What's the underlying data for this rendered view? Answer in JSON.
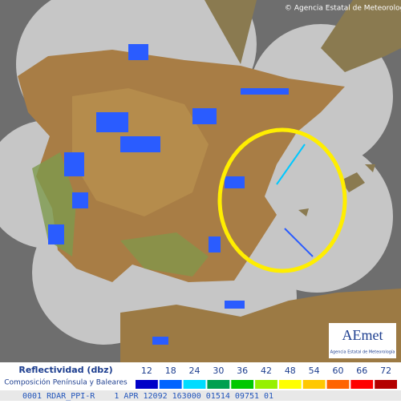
{
  "header": {
    "credit": "© Agencia Estatal de Meteorología"
  },
  "logo": {
    "name": "AEmet",
    "subtitle": "Agencia Estatal de Meteorología"
  },
  "legend": {
    "title": "Reflectividad (dbz)",
    "subtitle": "Composición Península y Baleares",
    "items": [
      {
        "label": 12,
        "color": "#0000c8"
      },
      {
        "label": 18,
        "color": "#0064ff"
      },
      {
        "label": 24,
        "color": "#00dcff"
      },
      {
        "label": 30,
        "color": "#00a050"
      },
      {
        "label": 36,
        "color": "#00c800"
      },
      {
        "label": 42,
        "color": "#96f000"
      },
      {
        "label": 48,
        "color": "#ffff00"
      },
      {
        "label": 54,
        "color": "#ffc800"
      },
      {
        "label": 60,
        "color": "#ff6400"
      },
      {
        "label": 66,
        "color": "#ff0000"
      },
      {
        "label": 72,
        "color": "#b40000"
      }
    ]
  },
  "footer": {
    "text": "0001 RDAR_PPI-R    1 APR 12092 163000 01514 09751 01"
  }
}
